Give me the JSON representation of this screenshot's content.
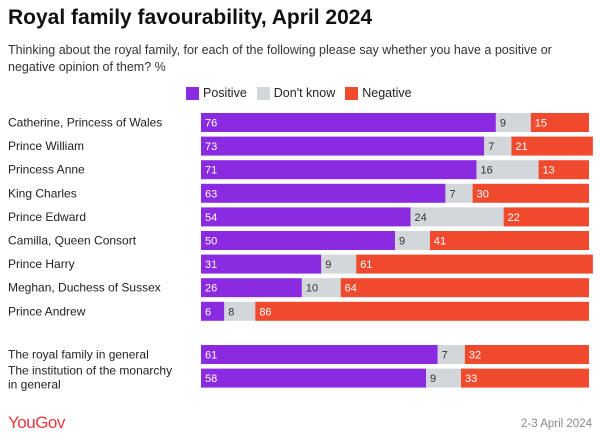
{
  "colors": {
    "positive": "#8a2be2",
    "dont_know": "#d3d6db",
    "negative": "#f04a2e",
    "brand": "#e8383b"
  },
  "footer": {
    "brand": "YouGov",
    "date": "2-3 April 2024"
  },
  "chart_data": {
    "type": "bar",
    "orientation": "horizontal",
    "stacked": true,
    "title": "Royal family favourability, April 2024",
    "subtitle": "Thinking about the royal family, for each of the following please say whether you have a positive or negative opinion of them? %",
    "legend": [
      "Positive",
      "Don't know",
      "Negative"
    ],
    "legend_position": "top",
    "xlim": [
      0,
      100
    ],
    "groups": [
      {
        "categories": [
          "Catherine, Princess of Wales",
          "Prince William",
          "Princess Anne",
          "King Charles",
          "Prince Edward",
          "Camilla, Queen Consort",
          "Prince Harry",
          "Meghan, Duchess of Sussex",
          "Prince Andrew"
        ],
        "series": [
          {
            "name": "Positive",
            "values": [
              76,
              73,
              71,
              63,
              54,
              50,
              31,
              26,
              6
            ]
          },
          {
            "name": "Don't know",
            "values": [
              9,
              7,
              16,
              7,
              24,
              9,
              9,
              10,
              8
            ]
          },
          {
            "name": "Negative",
            "values": [
              15,
              21,
              13,
              30,
              22,
              41,
              61,
              64,
              86
            ]
          }
        ]
      },
      {
        "categories": [
          "The royal family in general",
          "The institution of the monarchy in general"
        ],
        "series": [
          {
            "name": "Positive",
            "values": [
              61,
              58
            ]
          },
          {
            "name": "Don't know",
            "values": [
              7,
              9
            ]
          },
          {
            "name": "Negative",
            "values": [
              32,
              33
            ]
          }
        ]
      }
    ]
  }
}
